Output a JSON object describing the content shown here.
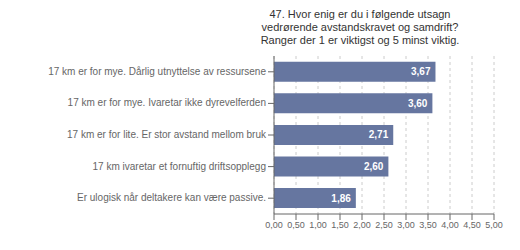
{
  "chart_data": {
    "type": "bar",
    "orientation": "horizontal",
    "title": "47. Hvor enig er du i følgende utsagn\nvedrørende avstandskravet og samdrift?\nRanger der 1 er viktigst og 5 minst viktig.",
    "categories": [
      "Er ulogisk når deltakere kan være passive.",
      "17 km ivaretar et fornuftig driftsopplegg",
      "17 km er for lite. Er stor avstand mellom bruk",
      "17 km er for mye. Ivaretar ikke dyrevelferden",
      "17 km er for mye. Dårlig utnyttelse av ressursene"
    ],
    "values": [
      1.86,
      2.6,
      2.71,
      3.6,
      3.67
    ],
    "value_labels": [
      "1,86",
      "2,60",
      "2,71",
      "3,60",
      "3,67"
    ],
    "data_labels": true,
    "color": "#6676a0",
    "xlim": [
      0,
      5.0
    ],
    "xticks": [
      {
        "value": 0.0,
        "label": "0,00"
      },
      {
        "value": 0.5,
        "label": "0,50"
      },
      {
        "value": 1.0,
        "label": "1,00"
      },
      {
        "value": 1.5,
        "label": "1,50"
      },
      {
        "value": 2.0,
        "label": "2,00"
      },
      {
        "value": 2.5,
        "label": "2,50"
      },
      {
        "value": 3.0,
        "label": "3,00"
      },
      {
        "value": 3.5,
        "label": "3,50"
      },
      {
        "value": 4.0,
        "label": "4,00"
      },
      {
        "value": 4.5,
        "label": "4,50"
      },
      {
        "value": 5.0,
        "label": "5,00"
      }
    ],
    "grid": true
  }
}
